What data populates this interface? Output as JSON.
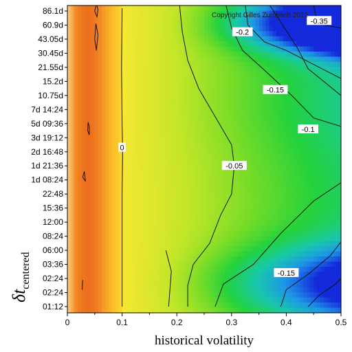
{
  "chart_data": {
    "type": "heatmap",
    "title": "",
    "xlabel": "historical volatility",
    "ylabel_main": "δt",
    "ylabel_sub": "centered",
    "copyright": "Copyright Gilles Zumbach 2012",
    "xlim": [
      0,
      0.5
    ],
    "x_ticks": [
      0,
      0.1,
      0.2,
      0.3,
      0.4,
      0.5
    ],
    "x_tick_labels": [
      "0",
      "0.1",
      "0.2",
      "0.3",
      "0.4",
      "0.5"
    ],
    "y_tick_labels": [
      "01:12",
      "02:24",
      "02:24",
      "03:36",
      "06:00",
      "08:24",
      "12:00",
      "15:36",
      "22:48",
      "1d 08:24",
      "1d 21:36",
      "2d 16:48",
      "3d 19:12",
      "5d 09:36",
      "7d 14:24",
      "10.75d",
      "15.2d",
      "21.55d",
      "30.45d",
      "43.05d",
      "60.9d",
      "86.1d"
    ],
    "contour_labels": [
      {
        "text": "0",
        "x": 0.1,
        "y": 11.3
      },
      {
        "text": "-0.05",
        "x": 0.305,
        "y": 10.0
      },
      {
        "text": "-0.1",
        "x": 0.44,
        "y": 12.6
      },
      {
        "text": "-0.15",
        "x": 0.38,
        "y": 15.4
      },
      {
        "text": "-0.2",
        "x": 0.32,
        "y": 19.5
      },
      {
        "text": "-0.35",
        "x": 0.46,
        "y": 20.3
      },
      {
        "text": "-0.15",
        "x": 0.4,
        "y": 2.4
      }
    ],
    "colors": {
      "high": "#e8781e",
      "zero": "#f2e630",
      "mid": "#1cd21c",
      "low": "#1010e0"
    }
  }
}
